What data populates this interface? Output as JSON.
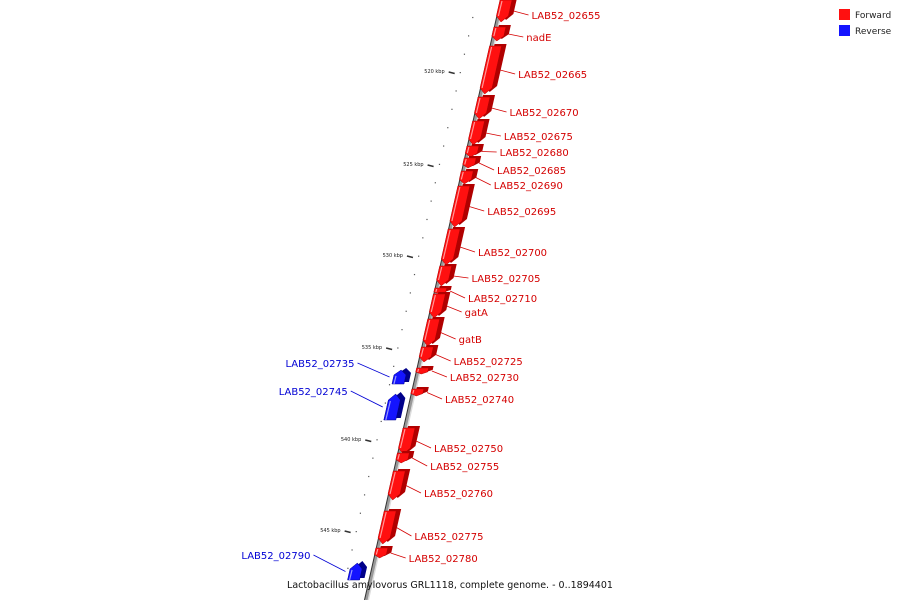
{
  "colors": {
    "forward": "#ff1010",
    "forward_dark": "#b00000",
    "forward_light": "#ff9a9a",
    "reverse": "#1414ff",
    "reverse_dark": "#00008a",
    "reverse_light": "#9a9aff",
    "backbone": "#999999",
    "backbone_dark": "#333333",
    "tick": "#333333"
  },
  "legend": [
    {
      "label": "Forward",
      "strand": "forward"
    },
    {
      "label": "Reverse",
      "strand": "reverse"
    }
  ],
  "caption": "Lactobacillus amylovorus GRL1118, complete genome. - 0..1894401",
  "ticks": [
    {
      "kbp": 520,
      "label": "520 kbp"
    },
    {
      "kbp": 525,
      "label": "525 kbp"
    },
    {
      "kbp": 530,
      "label": "530 kbp"
    },
    {
      "kbp": 535,
      "label": "535 kbp"
    },
    {
      "kbp": 540,
      "label": "540 kbp"
    },
    {
      "kbp": 545,
      "label": "545 kbp"
    }
  ],
  "genes": [
    {
      "name": "LAB52_02655",
      "strand": "forward"
    },
    {
      "name": "nadE",
      "strand": "forward"
    },
    {
      "name": "LAB52_02665",
      "strand": "forward"
    },
    {
      "name": "LAB52_02670",
      "strand": "forward"
    },
    {
      "name": "LAB52_02675",
      "strand": "forward"
    },
    {
      "name": "LAB52_02680",
      "strand": "forward"
    },
    {
      "name": "LAB52_02685",
      "strand": "forward"
    },
    {
      "name": "LAB52_02690",
      "strand": "forward"
    },
    {
      "name": "LAB52_02695",
      "strand": "forward"
    },
    {
      "name": "LAB52_02700",
      "strand": "forward"
    },
    {
      "name": "LAB52_02705",
      "strand": "forward"
    },
    {
      "name": "LAB52_02710",
      "strand": "forward"
    },
    {
      "name": "gatA",
      "strand": "forward"
    },
    {
      "name": "gatB",
      "strand": "forward"
    },
    {
      "name": "LAB52_02725",
      "strand": "forward"
    },
    {
      "name": "LAB52_02730",
      "strand": "forward"
    },
    {
      "name": "LAB52_02735",
      "strand": "reverse"
    },
    {
      "name": "LAB52_02740",
      "strand": "forward"
    },
    {
      "name": "LAB52_02745",
      "strand": "reverse"
    },
    {
      "name": "LAB52_02750",
      "strand": "forward"
    },
    {
      "name": "LAB52_02755",
      "strand": "forward"
    },
    {
      "name": "LAB52_02760",
      "strand": "forward"
    },
    {
      "name": "LAB52_02775",
      "strand": "forward"
    },
    {
      "name": "LAB52_02780",
      "strand": "forward"
    },
    {
      "name": "LAB52_02790",
      "strand": "reverse"
    }
  ]
}
